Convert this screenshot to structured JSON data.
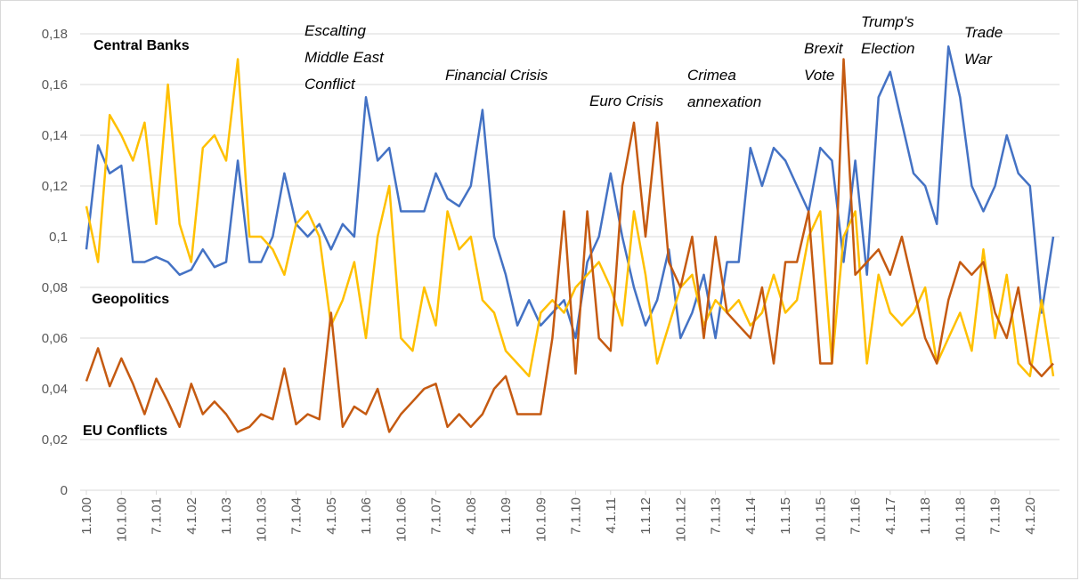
{
  "chart_data": {
    "type": "line",
    "categories": [
      "1.1.00",
      null,
      null,
      "10.1.00",
      null,
      null,
      "7.1.01",
      null,
      null,
      "4.1.02",
      null,
      null,
      "1.1.03",
      null,
      null,
      "10.1.03",
      null,
      null,
      "7.1.04",
      null,
      null,
      "4.1.05",
      null,
      null,
      "1.1.06",
      null,
      null,
      "10.1.06",
      null,
      null,
      "7.1.07",
      null,
      null,
      "4.1.08",
      null,
      null,
      "1.1.09",
      null,
      null,
      "10.1.09",
      null,
      null,
      "7.1.10",
      null,
      null,
      "4.1.11",
      null,
      null,
      "1.1.12",
      null,
      null,
      "10.1.12",
      null,
      null,
      "7.1.13",
      null,
      null,
      "4.1.14",
      null,
      null,
      "1.1.15",
      null,
      null,
      "10.1.15",
      null,
      null,
      "7.1.16",
      null,
      null,
      "4.1.17",
      null,
      null,
      "1.1.18",
      null,
      null,
      "10.1.18",
      null,
      null,
      "7.1.19",
      null,
      null,
      "4.1.20",
      null,
      null
    ],
    "series": [
      {
        "name": "Geopolitics",
        "color": "#4472c4",
        "values": [
          0.095,
          0.136,
          0.125,
          0.128,
          0.09,
          0.09,
          0.092,
          0.09,
          0.085,
          0.087,
          0.095,
          0.088,
          0.09,
          0.13,
          0.09,
          0.09,
          0.1,
          0.125,
          0.105,
          0.1,
          0.105,
          0.095,
          0.105,
          0.1,
          0.155,
          0.13,
          0.135,
          0.11,
          0.11,
          0.11,
          0.125,
          0.115,
          0.112,
          0.12,
          0.15,
          0.1,
          0.085,
          0.065,
          0.075,
          0.065,
          0.07,
          0.075,
          0.06,
          0.09,
          0.1,
          0.125,
          0.1,
          0.08,
          0.065,
          0.075,
          0.095,
          0.06,
          0.07,
          0.085,
          0.06,
          0.09,
          0.09,
          0.135,
          0.12,
          0.135,
          0.13,
          0.12,
          0.11,
          0.135,
          0.13,
          0.09,
          0.13,
          0.085,
          0.155,
          0.165,
          0.145,
          0.125,
          0.12,
          0.105,
          0.175,
          0.155,
          0.12,
          0.11,
          0.12,
          0.14,
          0.125,
          0.12,
          0.07,
          0.1
        ]
      },
      {
        "name": "Central Banks",
        "color": "#ffc000",
        "values": [
          0.112,
          0.09,
          0.148,
          0.14,
          0.13,
          0.145,
          0.105,
          0.16,
          0.105,
          0.09,
          0.135,
          0.14,
          0.13,
          0.17,
          0.1,
          0.1,
          0.095,
          0.085,
          0.105,
          0.11,
          0.1,
          0.065,
          0.075,
          0.09,
          0.06,
          0.1,
          0.12,
          0.06,
          0.055,
          0.08,
          0.065,
          0.11,
          0.095,
          0.1,
          0.075,
          0.07,
          0.055,
          0.05,
          0.045,
          0.07,
          0.075,
          0.07,
          0.08,
          0.085,
          0.09,
          0.08,
          0.065,
          0.11,
          0.085,
          0.05,
          0.065,
          0.08,
          0.085,
          0.065,
          0.075,
          0.07,
          0.075,
          0.065,
          0.07,
          0.085,
          0.07,
          0.075,
          0.1,
          0.11,
          0.05,
          0.1,
          0.11,
          0.05,
          0.085,
          0.07,
          0.065,
          0.07,
          0.08,
          0.05,
          0.06,
          0.07,
          0.055,
          0.095,
          0.06,
          0.085,
          0.05,
          0.045,
          0.075,
          0.045
        ]
      },
      {
        "name": "EU Conflicts",
        "color": "#c55a11",
        "values": [
          0.043,
          0.056,
          0.041,
          0.052,
          0.042,
          0.03,
          0.044,
          0.035,
          0.025,
          0.042,
          0.03,
          0.035,
          0.03,
          0.023,
          0.025,
          0.03,
          0.028,
          0.048,
          0.026,
          0.03,
          0.028,
          0.07,
          0.025,
          0.033,
          0.03,
          0.04,
          0.023,
          0.03,
          0.035,
          0.04,
          0.042,
          0.025,
          0.03,
          0.025,
          0.03,
          0.04,
          0.045,
          0.03,
          0.03,
          0.03,
          0.06,
          0.11,
          0.046,
          0.11,
          0.06,
          0.055,
          0.12,
          0.145,
          0.1,
          0.145,
          0.09,
          0.08,
          0.1,
          0.06,
          0.1,
          0.07,
          0.065,
          0.06,
          0.08,
          0.05,
          0.09,
          0.09,
          0.11,
          0.05,
          0.05,
          0.17,
          0.085,
          0.09,
          0.095,
          0.085,
          0.1,
          0.08,
          0.06,
          0.05,
          0.075,
          0.09,
          0.085,
          0.09,
          0.07,
          0.06,
          0.08,
          0.05,
          0.045,
          0.05
        ]
      }
    ],
    "ylim": [
      0,
      0.18
    ],
    "yticks": [
      0,
      {
        "value": 0.02,
        "label": "0,02"
      },
      {
        "value": 0.04,
        "label": "0,04"
      },
      {
        "value": 0.06,
        "label": "0,06"
      },
      {
        "value": 0.08,
        "label": "0,08"
      },
      {
        "value": 0.1,
        "label": "0,1"
      },
      {
        "value": 0.12,
        "label": "0,12"
      },
      {
        "value": 0.14,
        "label": "0,14"
      },
      {
        "value": 0.16,
        "label": "0,16"
      },
      {
        "value": 0.18,
        "label": "0,18"
      }
    ],
    "grid": true,
    "annotations": [
      {
        "lines": [
          "Escalting",
          "Middle East",
          "Conflict"
        ]
      },
      {
        "lines": [
          "Financial Crisis"
        ]
      },
      {
        "lines": [
          "Euro Crisis"
        ]
      },
      {
        "lines": [
          "Crimea",
          "annexation"
        ]
      },
      {
        "lines": [
          "Brexit",
          "Vote"
        ]
      },
      {
        "lines": [
          "Trump's",
          "Election"
        ]
      },
      {
        "lines": [
          "Trade",
          "War"
        ]
      }
    ]
  }
}
